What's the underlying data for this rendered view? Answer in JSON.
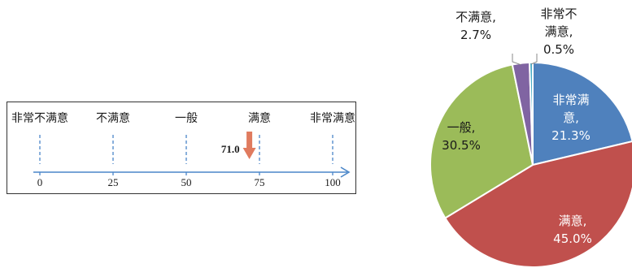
{
  "chart_data": [
    {
      "type": "scale",
      "categories": [
        "非常不满意",
        "不满意",
        "一般",
        "满意",
        "非常满意"
      ],
      "ticks": [
        0,
        25,
        50,
        75,
        100
      ],
      "xlim": [
        0,
        100
      ],
      "marker": {
        "value": 71.0,
        "label": "71.0",
        "color": "#e07b5f"
      },
      "axis_color": "#4a86c8"
    },
    {
      "type": "pie",
      "slices": [
        {
          "label_lines": [
            "非常满",
            "意,",
            "21.3%"
          ],
          "value": 21.3,
          "color": "#4f81bd",
          "label_color": "#ffffff"
        },
        {
          "label_lines": [
            "满意,",
            "45.0%"
          ],
          "value": 45.0,
          "color": "#c0504d",
          "label_color": "#ffffff"
        },
        {
          "label_lines": [
            "一般,",
            "30.5%"
          ],
          "value": 30.5,
          "color": "#9bbb59",
          "label_color": "#1a1a1a"
        },
        {
          "label_lines": [
            "不满意,",
            "2.7%"
          ],
          "value": 2.7,
          "color": "#8064a2",
          "label_color": "#1a1a1a"
        },
        {
          "label_lines": [
            "非常不",
            "满意,",
            "0.5%"
          ],
          "value": 0.5,
          "color": "#4bacc6",
          "label_color": "#1a1a1a"
        }
      ]
    }
  ]
}
